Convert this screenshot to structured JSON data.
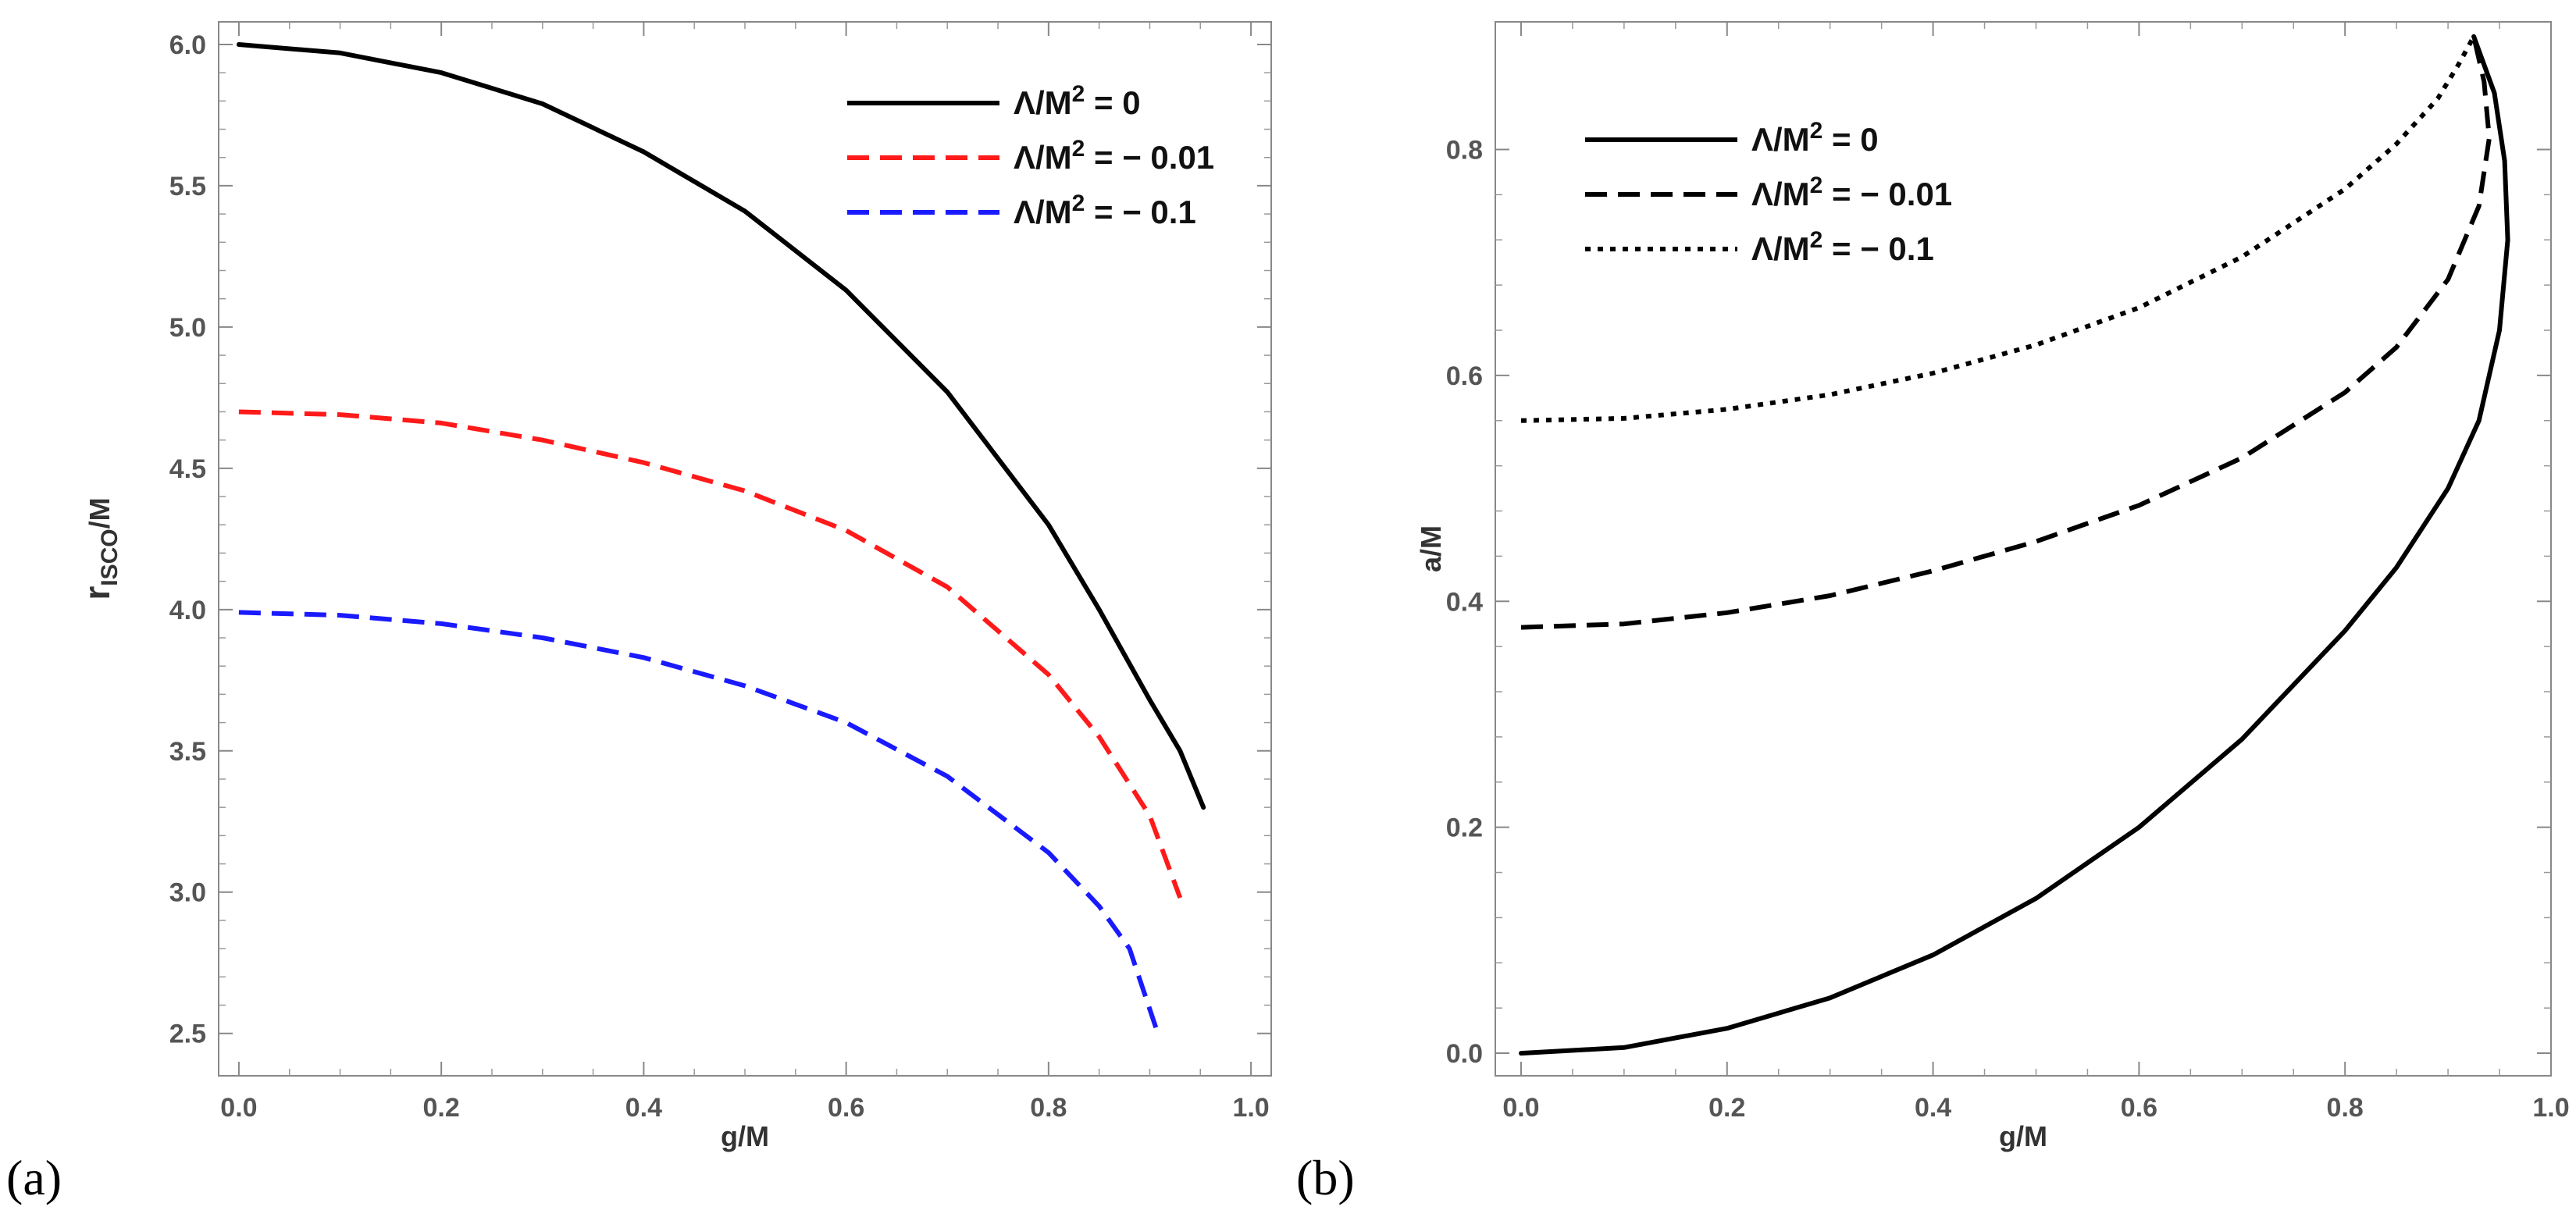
{
  "chart_data": [
    {
      "type": "line",
      "panel_label": "(a)",
      "xlabel": "g/M",
      "ylabel": "r_ISCO/M",
      "ylabel_main": "r",
      "ylabel_sub": "ISCO",
      "ylabel_tail": "/M",
      "xlim": [
        -0.02,
        1.02
      ],
      "ylim": [
        2.35,
        6.08
      ],
      "xticks": [
        0.0,
        0.2,
        0.4,
        0.6,
        0.8,
        1.0
      ],
      "xtick_labels": [
        "0.0",
        "0.2",
        "0.4",
        "0.6",
        "0.8",
        "1.0"
      ],
      "yticks": [
        2.5,
        3.0,
        3.5,
        4.0,
        4.5,
        5.0,
        5.5,
        6.0
      ],
      "ytick_labels": [
        "2.5",
        "3.0",
        "3.5",
        "4.0",
        "4.5",
        "5.0",
        "5.5",
        "6.0"
      ],
      "legend_position": "top-right",
      "series": [
        {
          "name": "Λ/M² = 0",
          "legend_main": "Λ/M",
          "legend_sup": "2",
          "legend_tail": " = 0",
          "color": "#000000",
          "dash": "solid",
          "x": [
            0.0,
            0.1,
            0.2,
            0.3,
            0.4,
            0.5,
            0.6,
            0.7,
            0.8,
            0.85,
            0.9,
            0.93,
            0.953
          ],
          "y": [
            6.0,
            5.97,
            5.9,
            5.79,
            5.62,
            5.41,
            5.13,
            4.77,
            4.3,
            4.0,
            3.68,
            3.5,
            3.3
          ]
        },
        {
          "name": "Λ/M² = − 0.01",
          "legend_main": "Λ/M",
          "legend_sup": "2",
          "legend_tail": " = − 0.01",
          "color": "#ff1a1a",
          "dash": "dashed",
          "x": [
            0.0,
            0.1,
            0.2,
            0.3,
            0.4,
            0.5,
            0.6,
            0.7,
            0.8,
            0.85,
            0.9,
            0.93
          ],
          "y": [
            4.7,
            4.69,
            4.66,
            4.6,
            4.52,
            4.42,
            4.28,
            4.08,
            3.77,
            3.55,
            3.27,
            2.98
          ]
        },
        {
          "name": "Λ/M² = − 0.1",
          "legend_main": "Λ/M",
          "legend_sup": "2",
          "legend_tail": " = − 0.1",
          "color": "#1a1aff",
          "dash": "dashed",
          "x": [
            0.0,
            0.1,
            0.2,
            0.3,
            0.4,
            0.5,
            0.6,
            0.7,
            0.8,
            0.85,
            0.88,
            0.908
          ],
          "y": [
            3.99,
            3.98,
            3.95,
            3.9,
            3.83,
            3.73,
            3.6,
            3.41,
            3.14,
            2.95,
            2.8,
            2.5
          ]
        }
      ]
    },
    {
      "type": "line",
      "panel_label": "(b)",
      "xlabel": "g/M",
      "ylabel": "a/M",
      "xlim": [
        -0.025,
        1.0
      ],
      "ylim": [
        -0.02,
        0.913
      ],
      "xticks": [
        0.0,
        0.2,
        0.4,
        0.6,
        0.8,
        1.0
      ],
      "xtick_labels": [
        "0.0",
        "0.2",
        "0.4",
        "0.6",
        "0.8",
        "1.0"
      ],
      "yticks": [
        0.0,
        0.2,
        0.4,
        0.6,
        0.8
      ],
      "ytick_labels": [
        "0.0",
        "0.2",
        "0.4",
        "0.6",
        "0.8"
      ],
      "legend_position": "top-left",
      "series": [
        {
          "name": "Λ/M² = 0",
          "legend_main": "Λ/M",
          "legend_sup": "2",
          "legend_tail": " = 0",
          "color": "#000000",
          "dash": "solid",
          "x": [
            0.0,
            0.1,
            0.2,
            0.3,
            0.4,
            0.5,
            0.6,
            0.7,
            0.8,
            0.85,
            0.9,
            0.93,
            0.95,
            0.958,
            0.955,
            0.945,
            0.925
          ],
          "y": [
            0.0,
            0.005,
            0.022,
            0.049,
            0.087,
            0.137,
            0.2,
            0.278,
            0.374,
            0.43,
            0.5,
            0.56,
            0.64,
            0.72,
            0.79,
            0.85,
            0.9
          ]
        },
        {
          "name": "Λ/M² = − 0.01",
          "legend_main": "Λ/M",
          "legend_sup": "2",
          "legend_tail": " = − 0.01",
          "color": "#000000",
          "dash": "dashed",
          "x": [
            0.0,
            0.1,
            0.2,
            0.3,
            0.4,
            0.5,
            0.6,
            0.7,
            0.8,
            0.85,
            0.9,
            0.93,
            0.94,
            0.935,
            0.925
          ],
          "y": [
            0.377,
            0.38,
            0.39,
            0.405,
            0.427,
            0.453,
            0.485,
            0.527,
            0.585,
            0.625,
            0.685,
            0.75,
            0.81,
            0.86,
            0.9
          ]
        },
        {
          "name": "Λ/M² = − 0.1",
          "legend_main": "Λ/M",
          "legend_sup": "2",
          "legend_tail": " = − 0.1",
          "color": "#000000",
          "dash": "dotted",
          "x": [
            0.0,
            0.1,
            0.2,
            0.3,
            0.4,
            0.5,
            0.6,
            0.7,
            0.8,
            0.85,
            0.89,
            0.91,
            0.925
          ],
          "y": [
            0.56,
            0.562,
            0.57,
            0.583,
            0.602,
            0.627,
            0.66,
            0.705,
            0.765,
            0.805,
            0.845,
            0.875,
            0.9
          ]
        }
      ]
    }
  ]
}
